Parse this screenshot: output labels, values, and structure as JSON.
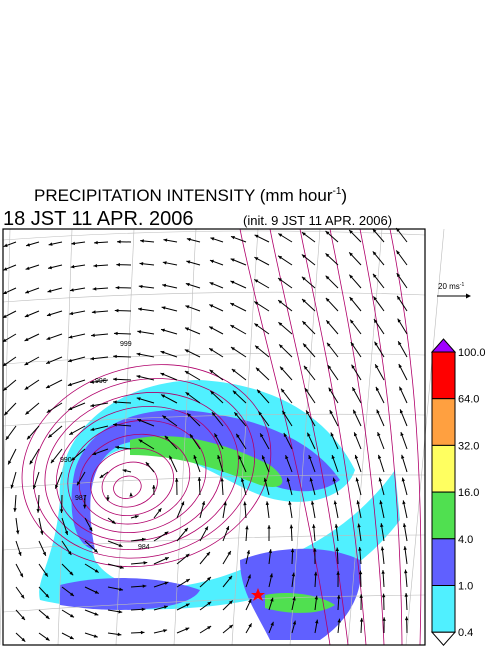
{
  "header": {
    "title": "PRECIPITATION INTENSITY (mm hour",
    "title_sup": "-1",
    "title_end": ")",
    "valid_time": "18 JST 11 APR. 2006",
    "init_time": "(init. 9 JST 11 APR. 2006)"
  },
  "vector_key": {
    "label": "20 ms",
    "sup": "-1"
  },
  "contour_labels": [
    "999",
    "996",
    "990",
    "987",
    "984"
  ],
  "colorbar": {
    "levels": [
      {
        "label": "100.0",
        "color": "#ff0000"
      },
      {
        "label": "64.0",
        "color": "#ffa040"
      },
      {
        "label": "32.0",
        "color": "#ffff60"
      },
      {
        "label": "16.0",
        "color": "#50e050"
      },
      {
        "label": "4.0",
        "color": "#6060ff"
      },
      {
        "label": "1.0",
        "color": "#50f0ff"
      },
      {
        "label": "0.4",
        "color": "#ffffff"
      }
    ],
    "over_color": "#a000ff"
  }
}
